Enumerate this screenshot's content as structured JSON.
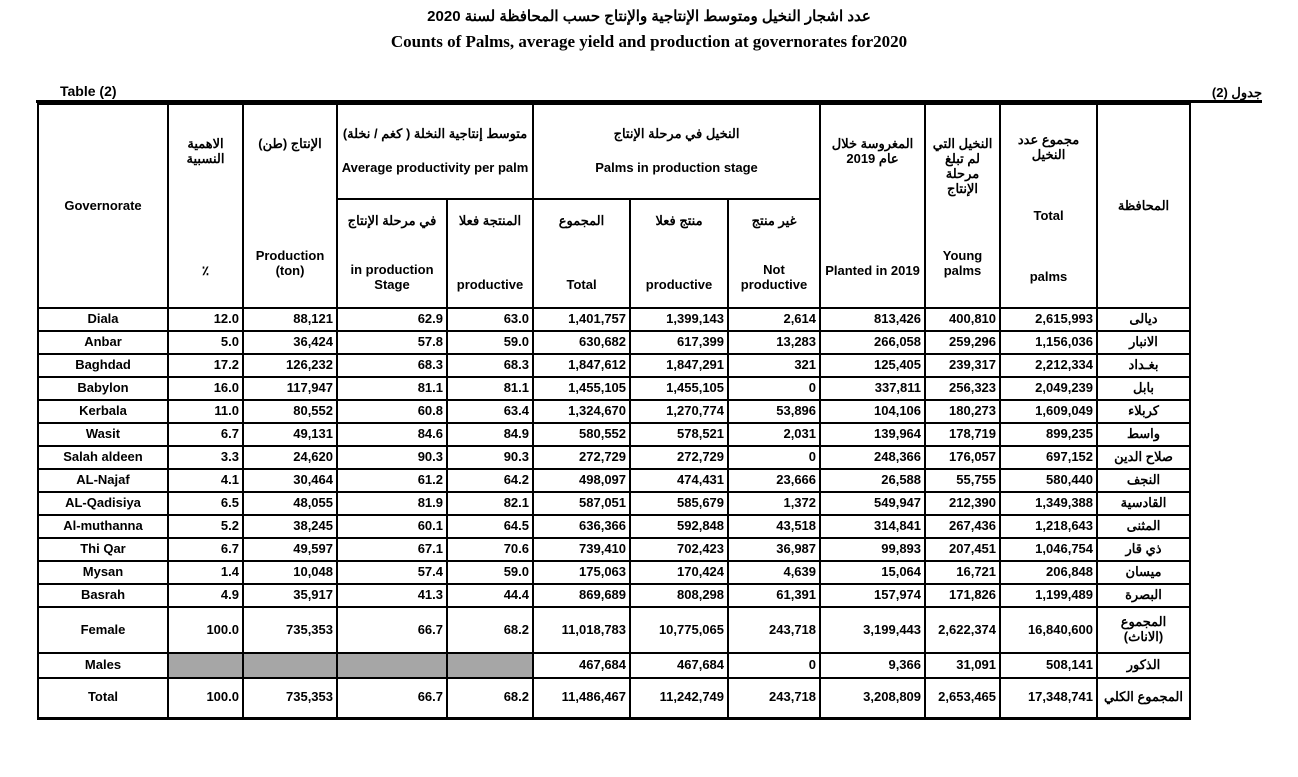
{
  "page": {
    "title_ar": "عدد اشجار النخيل ومتوسط الإنتاجية والإنتاج حسب المحافظة لسنة 2020",
    "title_en": "Counts of Palms, average yield and production at governorates  for2020",
    "table_label_en": "Table (2)",
    "table_label_ar": "جدول (2)"
  },
  "table": {
    "gray_color": "#a6a6a6",
    "header": {
      "governorate": {
        "en": "Governorate",
        "ar": "المحافظة"
      },
      "relative_importance": {
        "ar": "الاهمية النسبية",
        "en": "٪"
      },
      "production": {
        "ar": "الإنتاج (طن)",
        "en": "Production (ton)"
      },
      "avg_productivity_group": {
        "ar": "متوسط إنتاجية النخلة ( كغم / نخلة)",
        "en": "Average productivity per palm"
      },
      "in_production_stage": {
        "ar": "في مرحلة الإنتاج",
        "en": "in production Stage"
      },
      "productive_avg": {
        "ar": "المنتجة فعلا",
        "en": "productive"
      },
      "palms_group": {
        "ar": "النخيل في مرحلة الإنتاج",
        "en": "Palms in production stage"
      },
      "total": {
        "ar": "المجموع",
        "en": "Total"
      },
      "productive": {
        "ar": "منتج فعلا",
        "en": "productive"
      },
      "not_productive": {
        "ar": "غير منتج",
        "en": "Not productive"
      },
      "planted_2019": {
        "ar": "المغروسة خلال عام 2019",
        "en": "Planted in 2019"
      },
      "young_palms": {
        "ar": "النخيل التي لم تبلغ مرحلة الإنتاج",
        "en": "Young palms"
      },
      "total_palms": {
        "ar": "مجموع عدد النخيل",
        "en_line1": "Total",
        "en_line2": "palms"
      }
    },
    "rows": [
      {
        "en": "Diala",
        "ar": "ديالى",
        "values": [
          "12.0",
          "88,121",
          "62.9",
          "63.0",
          "1,401,757",
          "1,399,143",
          "2,614",
          "813,426",
          "400,810",
          "2,615,993"
        ]
      },
      {
        "en": "Anbar",
        "ar": "الانبار",
        "values": [
          "5.0",
          "36,424",
          "57.8",
          "59.0",
          "630,682",
          "617,399",
          "13,283",
          "266,058",
          "259,296",
          "1,156,036"
        ]
      },
      {
        "en": "Baghdad",
        "ar": "بغـداد",
        "values": [
          "17.2",
          "126,232",
          "68.3",
          "68.3",
          "1,847,612",
          "1,847,291",
          "321",
          "125,405",
          "239,317",
          "2,212,334"
        ]
      },
      {
        "en": "Babylon",
        "ar": "بابل",
        "values": [
          "16.0",
          "117,947",
          "81.1",
          "81.1",
          "1,455,105",
          "1,455,105",
          "0",
          "337,811",
          "256,323",
          "2,049,239"
        ]
      },
      {
        "en": "Kerbala",
        "ar": "كربلاء",
        "values": [
          "11.0",
          "80,552",
          "60.8",
          "63.4",
          "1,324,670",
          "1,270,774",
          "53,896",
          "104,106",
          "180,273",
          "1,609,049"
        ]
      },
      {
        "en": "Wasit",
        "ar": "واسط",
        "values": [
          "6.7",
          "49,131",
          "84.6",
          "84.9",
          "580,552",
          "578,521",
          "2,031",
          "139,964",
          "178,719",
          "899,235"
        ]
      },
      {
        "en": "Salah aldeen",
        "ar": "صلاح الدين",
        "values": [
          "3.3",
          "24,620",
          "90.3",
          "90.3",
          "272,729",
          "272,729",
          "0",
          "248,366",
          "176,057",
          "697,152"
        ]
      },
      {
        "en": "AL-Najaf",
        "ar": "النجف",
        "values": [
          "4.1",
          "30,464",
          "61.2",
          "64.2",
          "498,097",
          "474,431",
          "23,666",
          "26,588",
          "55,755",
          "580,440"
        ]
      },
      {
        "en": "AL-Qadisiya",
        "ar": "القادسية",
        "values": [
          "6.5",
          "48,055",
          "81.9",
          "82.1",
          "587,051",
          "585,679",
          "1,372",
          "549,947",
          "212,390",
          "1,349,388"
        ]
      },
      {
        "en": "Al-muthanna",
        "ar": "المثنى",
        "values": [
          "5.2",
          "38,245",
          "60.1",
          "64.5",
          "636,366",
          "592,848",
          "43,518",
          "314,841",
          "267,436",
          "1,218,643"
        ]
      },
      {
        "en": "Thi Qar",
        "ar": "ذي قار",
        "values": [
          "6.7",
          "49,597",
          "67.1",
          "70.6",
          "739,410",
          "702,423",
          "36,987",
          "99,893",
          "207,451",
          "1,046,754"
        ]
      },
      {
        "en": "Mysan",
        "ar": "ميسان",
        "values": [
          "1.4",
          "10,048",
          "57.4",
          "59.0",
          "175,063",
          "170,424",
          "4,639",
          "15,064",
          "16,721",
          "206,848"
        ]
      },
      {
        "en": "Basrah",
        "ar": "البصرة",
        "values": [
          "4.9",
          "35,917",
          "41.3",
          "44.4",
          "869,689",
          "808,298",
          "61,391",
          "157,974",
          "171,826",
          "1,199,489"
        ]
      },
      {
        "en": "Female",
        "ar": "المجموع (الاناث)",
        "values": [
          "100.0",
          "735,353",
          "66.7",
          "68.2",
          "11,018,783",
          "10,775,065",
          "243,718",
          "3,199,443",
          "2,622,374",
          "16,840,600"
        ]
      },
      {
        "en": "Males",
        "ar": "الذكور",
        "values": [
          null,
          null,
          null,
          null,
          "467,684",
          "467,684",
          "0",
          "9,366",
          "31,091",
          "508,141"
        ]
      },
      {
        "en": "Total",
        "ar": "المجموع الكلي",
        "values": [
          "100.0",
          "735,353",
          "66.7",
          "68.2",
          "11,486,467",
          "11,242,749",
          "243,718",
          "3,208,809",
          "2,653,465",
          "17,348,741"
        ]
      }
    ]
  }
}
